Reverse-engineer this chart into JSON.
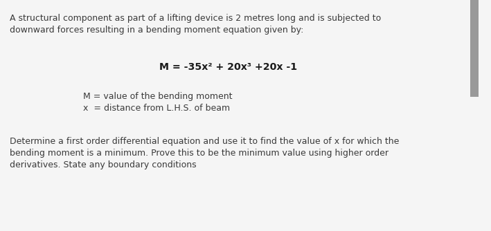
{
  "bg_color": "#f0f0f0",
  "text_color": "#3a3a3a",
  "panel_color": "#f5f5f5",
  "para1_line1": "A structural component as part of a lifting device is 2 metres long and is subjected to",
  "para1_line2": "downward forces resulting in a bending moment equation given by:",
  "equation": "M = -35x² + 20x³ +20x -1",
  "legend1": "M = value of the bending moment",
  "legend2": "x  = distance from L.H.S. of beam",
  "para2_line1": "Determine a first order differential equation and use it to find the value of x for which the",
  "para2_line2": "bending moment is a minimum. Prove this to be the minimum value using higher order",
  "para2_line3": "derivatives. State any boundary conditions",
  "scrollbar_color": "#c8c8c8",
  "scrollbar_thumb_color": "#999999",
  "figsize": [
    7.09,
    3.34
  ],
  "dpi": 100
}
